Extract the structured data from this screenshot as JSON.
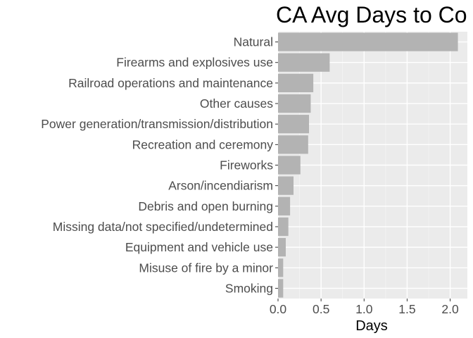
{
  "chart_data": {
    "type": "bar",
    "orientation": "horizontal",
    "title": "CA Avg Days to Co",
    "xlabel": "Days",
    "ylabel": "",
    "xlim": [
      0,
      2.2
    ],
    "xticks": [
      "0.0",
      "0.5",
      "1.0",
      "1.5",
      "2.0"
    ],
    "grid": true,
    "categories": [
      "Natural",
      "Firearms and explosives use",
      "Railroad operations and maintenance",
      "Other causes",
      "Power generation/transmission/distribution",
      "Recreation and ceremony",
      "Fireworks",
      "Arson/incendiarism",
      "Debris and open burning",
      "Missing data/not specified/undetermined",
      "Equipment and vehicle use",
      "Misuse of fire by a minor",
      "Smoking"
    ],
    "values": [
      2.09,
      0.6,
      0.41,
      0.38,
      0.36,
      0.35,
      0.26,
      0.18,
      0.14,
      0.12,
      0.09,
      0.06,
      0.06
    ],
    "colors": {
      "panel": "#ebebeb",
      "grid_major": "#ffffff",
      "grid_minor": "#f4f4f4",
      "bar": "#b3b3b3",
      "tick": "#333333"
    }
  }
}
